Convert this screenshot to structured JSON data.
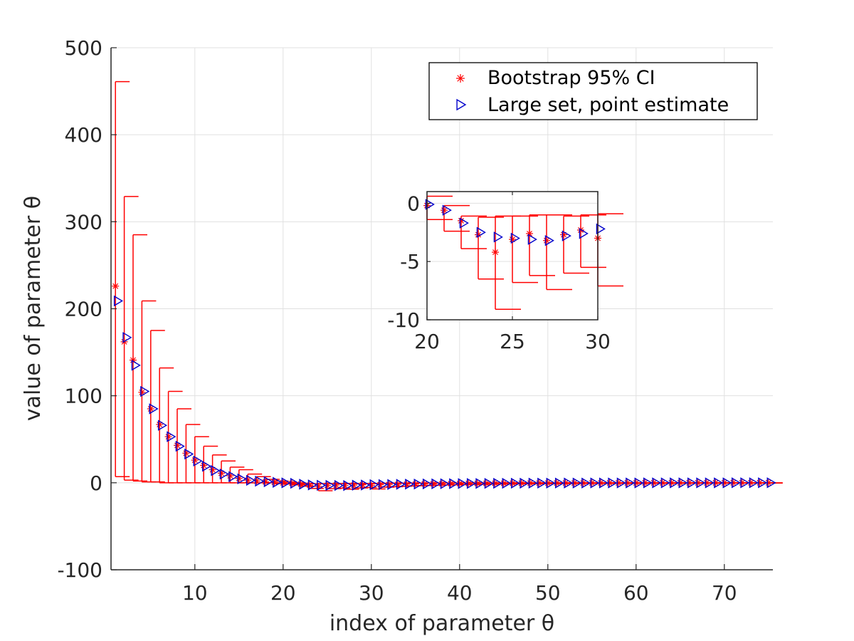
{
  "chart_data": {
    "type": "scatter",
    "xlabel": "index of parameter θ",
    "ylabel": "value of parameter θ",
    "xlim": [
      0.5,
      75.5
    ],
    "ylim": [
      -100,
      500
    ],
    "xticks": [
      10,
      20,
      30,
      40,
      50,
      60,
      70
    ],
    "yticks": [
      -100,
      0,
      100,
      200,
      300,
      400,
      500
    ],
    "xtick_labels": [
      "10",
      "20",
      "30",
      "40",
      "50",
      "60",
      "70"
    ],
    "ytick_labels": [
      "-100",
      "0",
      "100",
      "200",
      "300",
      "400",
      "500"
    ],
    "grid": true,
    "legend": {
      "position": "top-right",
      "entries": [
        "Bootstrap 95% CI",
        "Large set, point estimate"
      ]
    },
    "colors": {
      "bootstrap": "#ff0000",
      "point": "#0000cc"
    },
    "series": [
      {
        "name": "Bootstrap 95% CI",
        "marker": "asterisk",
        "color": "#ff0000",
        "x": [
          1,
          2,
          3,
          4,
          5,
          6,
          7,
          8,
          9,
          10,
          11,
          12,
          13,
          14,
          15,
          16,
          17,
          18,
          19,
          20,
          21,
          22,
          23,
          24,
          25,
          26,
          27,
          28,
          29,
          30,
          31,
          32,
          33,
          34,
          35,
          36,
          37,
          38,
          39,
          40,
          41,
          42,
          43,
          44,
          45,
          46,
          47,
          48,
          49,
          50,
          51,
          52,
          53,
          54,
          55,
          56,
          57,
          58,
          59,
          60,
          61,
          62,
          63,
          64,
          65,
          66,
          67,
          68,
          69,
          70,
          71,
          72,
          73,
          74,
          75
        ],
        "y": [
          226,
          162,
          141,
          104,
          85,
          67,
          53,
          43,
          34,
          26,
          20,
          15,
          11,
          8,
          5,
          3,
          2,
          1,
          0.5,
          -0.2,
          -0.6,
          -1.5,
          -2.7,
          -4.2,
          -3.1,
          -2.6,
          -3.2,
          -2.7,
          -2.3,
          -3.0,
          -2.2,
          -2.0,
          -1.8,
          -1.6,
          -1.5,
          -1.3,
          -1.2,
          -1.1,
          -1.0,
          -0.9,
          -0.8,
          -0.8,
          -0.7,
          -0.6,
          -0.6,
          -0.5,
          -0.5,
          -0.4,
          -0.4,
          -0.4,
          -0.3,
          -0.3,
          -0.3,
          -0.3,
          -0.2,
          -0.2,
          -0.2,
          -0.2,
          -0.2,
          -0.2,
          -0.1,
          -0.1,
          -0.1,
          -0.1,
          -0.1,
          -0.1,
          -0.1,
          -0.1,
          -0.1,
          -0.1,
          0,
          0,
          0,
          0,
          0
        ],
        "lower": [
          7,
          3,
          2,
          1,
          1,
          0,
          0,
          0,
          0,
          0,
          0,
          0,
          0,
          0,
          0,
          0,
          0,
          0,
          -1,
          -1.4,
          -2.4,
          -3.9,
          -6.5,
          -9.1,
          -6.8,
          -6.2,
          -7.4,
          -6.0,
          -5.5,
          -7.1,
          -5.0,
          -4.5,
          -4.0,
          -3.5,
          -3.2,
          -2.9,
          -2.6,
          -2.4,
          -2.2,
          -2.0,
          -1.9,
          -1.8,
          -1.6,
          -1.5,
          -1.4,
          -1.3,
          -1.2,
          -1.1,
          -1.0,
          -1.0,
          -0.9,
          -0.9,
          -0.8,
          -0.8,
          -0.7,
          -0.7,
          -0.6,
          -0.6,
          -0.6,
          -0.5,
          -0.5,
          -0.5,
          -0.5,
          -0.4,
          -0.4,
          -0.4,
          -0.4,
          -0.4,
          -0.4,
          -0.3,
          -0.3,
          -0.3,
          -0.3,
          -0.3,
          -0.3
        ],
        "upper": [
          461,
          329,
          285,
          209,
          175,
          132,
          105,
          85,
          67,
          53,
          42,
          32,
          25,
          18,
          15,
          10,
          7,
          4,
          2,
          0.6,
          -0.2,
          -1.1,
          -1.2,
          -1.1,
          -1.1,
          -1.0,
          -1.0,
          -1.1,
          -1.0,
          -0.9,
          -0.5,
          -0.4,
          -0.4,
          -0.3,
          -0.3,
          -0.3,
          -0.2,
          -0.2,
          -0.2,
          -0.2,
          0,
          0,
          0,
          0,
          0,
          0,
          0,
          0,
          0,
          0,
          0,
          0,
          0,
          0,
          0,
          0,
          0,
          0,
          0,
          0,
          0,
          0,
          0,
          0,
          0,
          0,
          0,
          0,
          0,
          0,
          0,
          0,
          0,
          0,
          0
        ]
      },
      {
        "name": "Large set, point estimate",
        "marker": "triangle-right",
        "color": "#0000cc",
        "x": [
          1,
          2,
          3,
          4,
          5,
          6,
          7,
          8,
          9,
          10,
          11,
          12,
          13,
          14,
          15,
          16,
          17,
          18,
          19,
          20,
          21,
          22,
          23,
          24,
          25,
          26,
          27,
          28,
          29,
          30,
          31,
          32,
          33,
          34,
          35,
          36,
          37,
          38,
          39,
          40,
          41,
          42,
          43,
          44,
          45,
          46,
          47,
          48,
          49,
          50,
          51,
          52,
          53,
          54,
          55,
          56,
          57,
          58,
          59,
          60,
          61,
          62,
          63,
          64,
          65,
          66,
          67,
          68,
          69,
          70,
          71,
          72,
          73,
          74,
          75
        ],
        "y": [
          209,
          167,
          135,
          105,
          85,
          66,
          53,
          42,
          33,
          25,
          19,
          14,
          10,
          7,
          4.5,
          2.8,
          1.8,
          1.2,
          0.5,
          -0.1,
          -0.6,
          -1.7,
          -2.5,
          -2.9,
          -3.0,
          -3.1,
          -3.2,
          -2.8,
          -2.6,
          -2.2,
          -2.1,
          -2.0,
          -1.8,
          -1.6,
          -1.5,
          -1.3,
          -1.2,
          -1.1,
          -1.0,
          -0.9,
          -0.8,
          -0.8,
          -0.7,
          -0.6,
          -0.6,
          -0.5,
          -0.5,
          -0.4,
          -0.4,
          -0.4,
          -0.3,
          -0.3,
          -0.3,
          -0.3,
          -0.2,
          -0.2,
          -0.2,
          -0.2,
          -0.2,
          -0.2,
          -0.1,
          -0.1,
          -0.1,
          -0.1,
          -0.1,
          -0.1,
          -0.1,
          -0.1,
          -0.1,
          -0.1,
          0,
          0,
          0,
          0,
          0
        ]
      }
    ],
    "inset": {
      "xlim": [
        20,
        30
      ],
      "ylim": [
        -10,
        1
      ],
      "xticks": [
        20,
        25,
        30
      ],
      "yticks": [
        0,
        -5,
        -10
      ],
      "xtick_labels": [
        "20",
        "25",
        "30"
      ],
      "ytick_labels": [
        "0",
        "-5",
        "-10"
      ],
      "x_from": 20,
      "x_to": 30
    }
  }
}
